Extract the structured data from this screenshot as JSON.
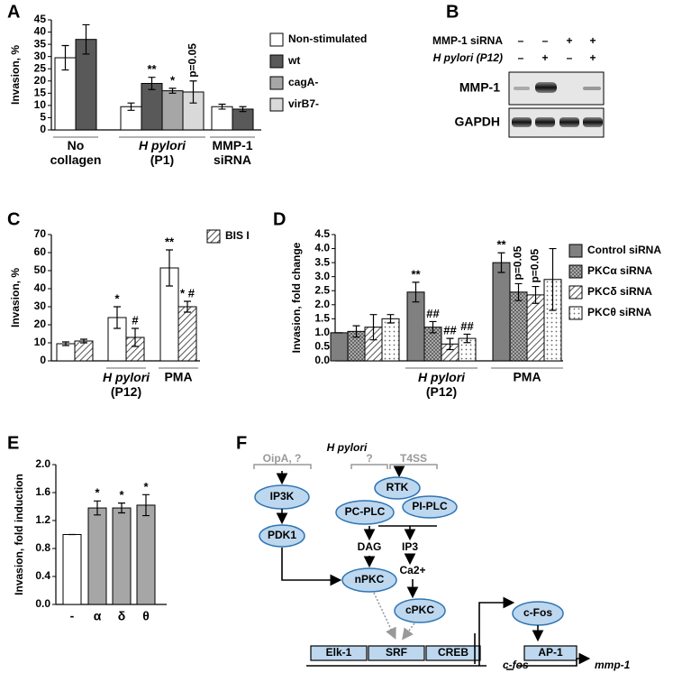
{
  "panel_labels": [
    "A",
    "B",
    "C",
    "D",
    "E",
    "F"
  ],
  "chart_data": [
    {
      "type": "bar",
      "ylabel": "Invasion, %",
      "categories": [
        "No\ncollagen",
        "H pylori\n(P1)",
        "MMP-1\nsiRNA"
      ],
      "series": [
        {
          "name": "Non-stimulated",
          "color": "#ffffff",
          "values": [
            29.5,
            9.5,
            9.5
          ],
          "errors": [
            5,
            1.5,
            1
          ]
        },
        {
          "name": "wt",
          "color": "#595959",
          "values": [
            37,
            19,
            8.5
          ],
          "errors": [
            6,
            2.5,
            1
          ],
          "annotations": [
            null,
            "**",
            null
          ]
        },
        {
          "name": "cagA-",
          "color": "#a6a6a6",
          "values": [
            null,
            16,
            null
          ],
          "errors": [
            null,
            1,
            null
          ],
          "annotations": [
            null,
            "*",
            null
          ]
        },
        {
          "name": "virB7-",
          "color": "#d9d9d9",
          "values": [
            null,
            15.5,
            null
          ],
          "errors": [
            null,
            4.5,
            null
          ],
          "annotations": [
            null,
            "p=0.05",
            null
          ]
        }
      ],
      "ylim": [
        0,
        45
      ],
      "yticks": [
        0,
        5,
        10,
        15,
        20,
        25,
        30,
        35,
        40,
        45
      ]
    },
    {
      "type": "bar",
      "ylabel": "Invasion, %",
      "categories": [
        null,
        "H pylori\n(P12)",
        "PMA"
      ],
      "series": [
        {
          "color": "#ffffff",
          "values": [
            9.5,
            24,
            51.5
          ],
          "errors": [
            1,
            6,
            10
          ],
          "annotations": [
            null,
            "*",
            "**"
          ]
        },
        {
          "name": "BIS I",
          "color": "#ffffff",
          "pattern": "hatch",
          "values": [
            11,
            13,
            30
          ],
          "errors": [
            1,
            5,
            3
          ],
          "annotations": [
            null,
            "#",
            "* #"
          ]
        }
      ],
      "ylim": [
        0,
        70
      ],
      "yticks": [
        0,
        10,
        20,
        30,
        40,
        50,
        60,
        70
      ]
    },
    {
      "type": "bar",
      "ylabel": "Invasion, fold change",
      "categories": [
        null,
        "H pylori\n(P12)",
        "PMA"
      ],
      "series": [
        {
          "name": "Control siRNA",
          "color": "#808080",
          "values": [
            1.0,
            2.45,
            3.5
          ],
          "errors": [
            0,
            0.35,
            0.35
          ],
          "annotations": [
            null,
            "**",
            "**"
          ]
        },
        {
          "name": "PKCα siRNA",
          "color": "#ffffff",
          "pattern": "cross",
          "values": [
            1.05,
            1.2,
            2.45
          ],
          "errors": [
            0.2,
            0.2,
            0.3
          ],
          "annotations": [
            null,
            "##",
            "p=0.05"
          ]
        },
        {
          "name": "PKCδ siRNA",
          "color": "#ffffff",
          "pattern": "hatch",
          "values": [
            1.2,
            0.6,
            2.35
          ],
          "errors": [
            0.45,
            0.2,
            0.3
          ],
          "annotations": [
            null,
            "##",
            "p=0.05"
          ]
        },
        {
          "name": "PKCθ siRNA",
          "color": "#ffffff",
          "pattern": "dots",
          "values": [
            1.5,
            0.8,
            2.9
          ],
          "errors": [
            0.15,
            0.15,
            1.1
          ],
          "annotations": [
            null,
            "##",
            null
          ]
        }
      ],
      "ylim": [
        0,
        4.5
      ],
      "yticks": [
        {
          "value": 0,
          "label": "0.0"
        },
        {
          "value": 0.5,
          "label": "0.5"
        },
        {
          "value": 1,
          "label": "1.0"
        },
        {
          "value": 1.5,
          "label": "1.5"
        },
        {
          "value": 2,
          "label": "2.0"
        },
        {
          "value": 2.5,
          "label": "2.5"
        },
        {
          "value": 3,
          "label": "3.0"
        },
        {
          "value": 3.5,
          "label": "3.5"
        },
        {
          "value": 4,
          "label": "4.0"
        },
        {
          "value": 4.5,
          "label": "4.5"
        }
      ]
    },
    {
      "type": "bar",
      "ylabel": "Invasion, fold induction",
      "categories": [
        "-",
        "α",
        "δ",
        "θ"
      ],
      "series": [
        {
          "color": "#a6a6a6",
          "colors": [
            "#ffffff",
            "#a6a6a6",
            "#a6a6a6",
            "#a6a6a6"
          ],
          "values": [
            1.0,
            1.38,
            1.38,
            1.42
          ],
          "errors": [
            0,
            0.1,
            0.07,
            0.15
          ],
          "annotations": [
            null,
            "*",
            "*",
            "*"
          ]
        }
      ],
      "ylim": [
        0,
        2.0
      ],
      "yticks": [
        {
          "value": 0,
          "label": "0.0"
        },
        {
          "value": 0.4,
          "label": "0.4"
        },
        {
          "value": 0.8,
          "label": "0.8"
        },
        {
          "value": 1.2,
          "label": "1.2"
        },
        {
          "value": 1.6,
          "label": "1.6"
        },
        {
          "value": 2.0,
          "label": "2.0"
        }
      ]
    }
  ],
  "blot": {
    "rows": [
      {
        "label": "MMP-1 siRNA",
        "signs": [
          "–",
          "–",
          "+",
          "+"
        ]
      },
      {
        "label": "H pylori (P12)",
        "signs": [
          "–",
          "+",
          "–",
          "+"
        ]
      }
    ],
    "bands": [
      "MMP-1",
      "GAPDH"
    ]
  },
  "diagram": {
    "source": "H pylori",
    "inputs": [
      "OipA, ?",
      "?",
      "T4SS"
    ],
    "nodes": [
      "IP3K",
      "RTK",
      "PI-PLC",
      "PC-PLC",
      "PDK1",
      "DAG",
      "IP3",
      "Ca2+",
      "nPKC",
      "cPKC",
      "c-Fos"
    ],
    "promoter": [
      "Elk-1",
      "SRF",
      "CREB"
    ],
    "ap1": "AP-1",
    "genes": [
      "c-fos",
      "mmp-1"
    ]
  }
}
